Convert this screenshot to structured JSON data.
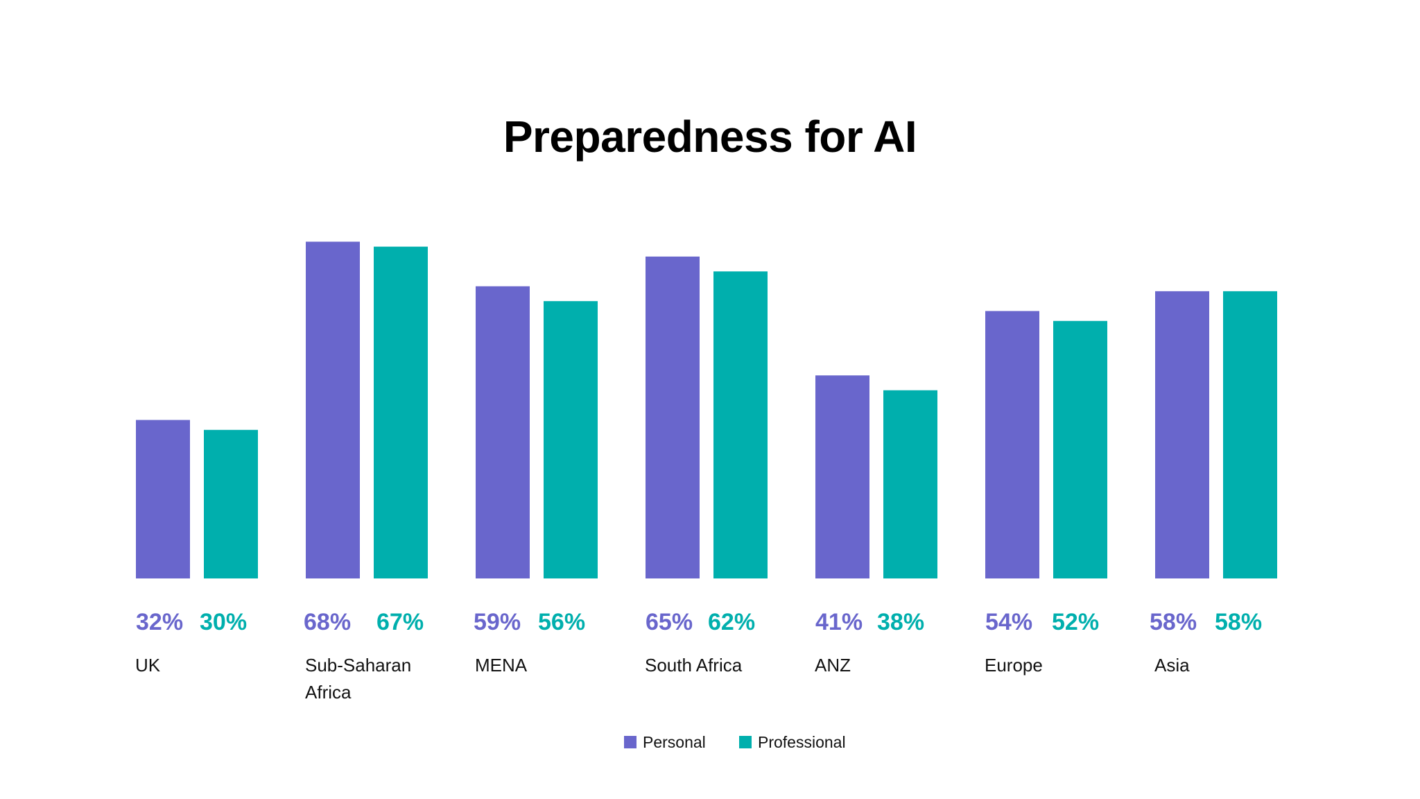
{
  "chart_data": {
    "type": "bar",
    "title": "Preparedness for AI",
    "xlabel": "",
    "ylabel": "",
    "ylim": [
      0,
      100
    ],
    "categories": [
      [
        "UK"
      ],
      [
        "Sub-Saharan",
        "Africa"
      ],
      [
        "MENA"
      ],
      [
        "South Africa"
      ],
      [
        "ANZ"
      ],
      [
        "Europe"
      ],
      [
        "Asia"
      ]
    ],
    "series": [
      {
        "name": "Personal",
        "color": "#6966CC",
        "values": [
          32,
          68,
          59,
          65,
          41,
          54,
          58
        ],
        "labels": [
          "32%",
          "68%",
          "59%",
          "65%",
          "41%",
          "54%",
          "58%"
        ]
      },
      {
        "name": "Professional",
        "color": "#00AFAD",
        "values": [
          30,
          67,
          56,
          62,
          38,
          52,
          58
        ],
        "labels": [
          "30%",
          "67%",
          "56%",
          "62%",
          "38%",
          "52%",
          "58%"
        ]
      }
    ],
    "legend": "bottom-center",
    "grid": false
  }
}
